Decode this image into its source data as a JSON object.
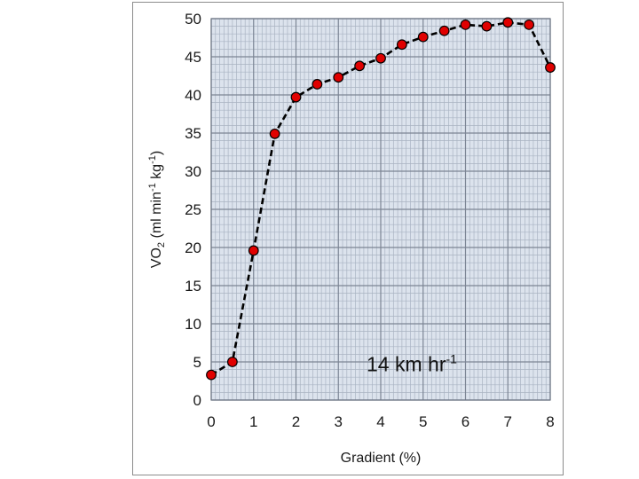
{
  "chart_data": {
    "type": "line",
    "title": "",
    "xlabel": "Gradient (%)",
    "ylabel": {
      "base": "VO",
      "sub": "2",
      "unit_open": " (ml min",
      "exp1": "-1",
      "unit_mid": " kg",
      "exp2": "-1",
      "unit_close": ")"
    },
    "annotation": {
      "text": "14 km hr",
      "sup": "-1"
    },
    "xlim": [
      0,
      8
    ],
    "ylim": [
      0,
      50
    ],
    "x_ticks": [
      "0",
      "1",
      "2",
      "3",
      "4",
      "5",
      "6",
      "7",
      "8"
    ],
    "y_ticks": [
      "0",
      "5",
      "10",
      "15",
      "20",
      "25",
      "30",
      "35",
      "40",
      "45",
      "50"
    ],
    "grid": true,
    "legend": "none",
    "series": [
      {
        "x": [
          0,
          0.5,
          1,
          1.5,
          2,
          2.5,
          3,
          3.5,
          4,
          4.5,
          5,
          5.5,
          6,
          6.5,
          7,
          7.5,
          8
        ],
        "y": [
          3.3,
          5.0,
          19.6,
          34.9,
          39.7,
          41.4,
          42.3,
          43.8,
          44.8,
          46.6,
          47.6,
          48.4,
          49.2,
          49.0,
          49.5,
          49.2,
          43.6
        ],
        "line_style": "dashed",
        "marker": "circle",
        "marker_color": "#e00000",
        "line_color": "#000000"
      }
    ]
  },
  "colors": {
    "plot_background": "#dce3ed",
    "minor_grid": "#a9b3c2",
    "major_grid": "#7c8594",
    "marker_fill": "#e00000"
  }
}
